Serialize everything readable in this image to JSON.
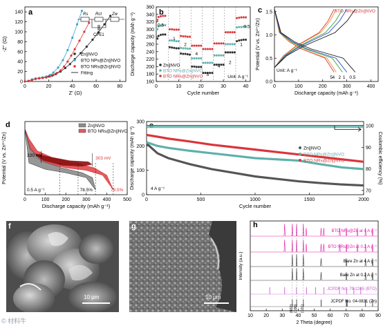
{
  "colors": {
    "black": "#2b2b2b",
    "blue": "#3aa6c7",
    "red": "#d9353a",
    "teal": "#5fb0aa",
    "gray": "#5a5a5a",
    "pink": "#e01aa6",
    "purple": "#c85cd0",
    "darkred": "#8b1010"
  },
  "panels": {
    "a": {
      "letter": "a",
      "xlabel": "Z' (Ω)",
      "ylabel": "-Z'' (Ω)",
      "xticks": [
        "0",
        "20",
        "40",
        "60",
        "80"
      ],
      "yticks": [
        "0",
        "20",
        "40",
        "60",
        "80",
        "100",
        "120",
        "140"
      ],
      "legend": [
        "Zn||NVO",
        "BTO NPs@Zn||NVO",
        "BTO NRs@Zn||NVO",
        "Fitting"
      ],
      "circuit": {
        "r1": "R",
        "r1sub": "s",
        "r2": "R",
        "r2sub": "ct",
        "cpe": "CPE",
        "cpesub": "1",
        "zw": "Z",
        "zwsub": "w"
      }
    },
    "b": {
      "letter": "b",
      "xlabel": "Cycle number",
      "ylabel": "Discharge capacity (mAh g⁻¹)",
      "xticks": [
        "0",
        "10",
        "20",
        "30",
        "40"
      ],
      "yticks": [
        "160",
        "180",
        "200",
        "220",
        "240",
        "260",
        "280",
        "300",
        "320",
        "340",
        "360"
      ],
      "rates": [
        "0.5",
        "1",
        "2",
        "4",
        "5",
        "4",
        "2",
        "1",
        "0.5"
      ],
      "unit": "Unit: A g⁻¹",
      "legend": [
        "Zn||NVO",
        "BTO NPs@Zn||NVO",
        "BTO NRs@Zn||NVO"
      ]
    },
    "c": {
      "letter": "c",
      "title": "BTO NRs@Zn||NVO",
      "xlabel": "Discharge capacity (mAh g⁻¹)",
      "ylabel": "Potential (V vs. Zn²⁺/Zn)",
      "xticks": [
        "0",
        "100",
        "200",
        "300",
        "400"
      ],
      "yticks": [
        "0.0",
        "0.5",
        "1.0",
        "1.5"
      ],
      "unit": "Unit: A g⁻¹",
      "rate_labels": [
        "5",
        "4",
        "2",
        "1",
        "0.5"
      ]
    },
    "d": {
      "letter": "d",
      "xlabel": "Discharge capacity (mAh g⁻¹)",
      "ylabel": "Potential (V vs. Zn²⁺/Zn)",
      "xticks": [
        "0",
        "100",
        "200",
        "300",
        "400",
        "500"
      ],
      "legend": [
        "Zn||NVO",
        "BTO NRs@Zn||NVO"
      ],
      "ann_left": "320 mV",
      "ann_right": "303 mV",
      "rate": "0.5 A g⁻¹",
      "ret_black": "78.5%",
      "ret_red": "79.5%"
    },
    "e": {
      "letter": "e",
      "xlabel": "Cycle number",
      "ylabel": "Discharge capacity (mAh g⁻¹)",
      "y2label": "Coulombic efficiency (%)",
      "xticks": [
        "0",
        "500",
        "1000",
        "1500",
        "2000"
      ],
      "yticks": [
        "0",
        "100",
        "200",
        "300"
      ],
      "y2ticks": [
        "70",
        "80",
        "90",
        "100"
      ],
      "legend": [
        "Zn||NVO",
        "BTO NPs@Zn||NVO",
        "BTO NRs@Zn||NVO"
      ],
      "rate": "4 A g⁻¹"
    },
    "f": {
      "letter": "f",
      "scale": "10 μm"
    },
    "g": {
      "letter": "g",
      "scale": "10 μm"
    },
    "h": {
      "letter": "h",
      "xlabel": "2 Theta (degree)",
      "ylabel": "Intensity (a.u.)",
      "xticks": [
        "10",
        "20",
        "30",
        "40",
        "50",
        "60",
        "70",
        "80",
        "90"
      ],
      "traces": [
        "BTO NRs@Zn at 4 A g⁻¹",
        "BTO NRs@Zn at 0.2 A g⁻¹",
        "Bare Zn at 4 A g⁻¹",
        "Bare Zn at 0.2 A g⁻¹",
        "JCPDF No. 79-2265 (BTO)",
        "JCPDF No. 04-0831 (Zn)"
      ],
      "peaks": [
        "(002)",
        "(100)",
        "(101)"
      ]
    }
  },
  "watermark": "© 材料牛",
  "chart_data": [
    {
      "type": "line",
      "panel": "a",
      "xlim": [
        0,
        85
      ],
      "ylim": [
        0,
        150
      ],
      "series": [
        {
          "name": "Zn||NVO",
          "x": [
            0,
            3,
            6,
            9,
            12,
            15,
            18,
            20,
            23,
            26,
            30,
            34,
            38,
            42,
            47,
            52,
            57,
            62,
            67,
            72
          ],
          "y": [
            0,
            1,
            4,
            6,
            7,
            8,
            9,
            10,
            12,
            15,
            20,
            27,
            35,
            45,
            57,
            70,
            84,
            99,
            115,
            132
          ]
        },
        {
          "name": "BTO NPs@Zn||NVO",
          "x": [
            0,
            3,
            6,
            9,
            12,
            15,
            18,
            21,
            24,
            28,
            32,
            36,
            40,
            44,
            48
          ],
          "y": [
            0,
            1,
            4,
            6,
            7,
            8,
            10,
            13,
            18,
            28,
            43,
            63,
            88,
            115,
            142
          ]
        },
        {
          "name": "BTO NRs@Zn||NVO",
          "x": [
            0,
            3,
            6,
            9,
            12,
            15,
            18,
            21,
            24,
            27,
            30,
            33,
            36,
            39,
            42,
            46,
            50,
            54
          ],
          "y": [
            0,
            1,
            3,
            5,
            6,
            7,
            8,
            10,
            13,
            17,
            22,
            30,
            40,
            52,
            65,
            82,
            100,
            118
          ]
        }
      ]
    },
    {
      "type": "scatter",
      "panel": "b",
      "xlim": [
        0,
        42
      ],
      "ylim": [
        160,
        360
      ],
      "series": [
        {
          "name": "Zn||NVO",
          "values": [
            [
              0.5,
              275
            ],
            [
              1,
              282
            ],
            [
              2,
              285
            ],
            [
              3,
              286
            ],
            [
              4,
              286
            ],
            [
              6,
              252
            ],
            [
              7,
              251
            ],
            [
              8,
              250
            ],
            [
              9,
              249
            ],
            [
              10,
              249
            ],
            [
              11,
              235
            ],
            [
              12,
              234
            ],
            [
              13,
              234
            ],
            [
              14,
              233
            ],
            [
              15,
              232
            ],
            [
              16,
              200
            ],
            [
              17,
              200
            ],
            [
              18,
              199
            ],
            [
              19,
              199
            ],
            [
              20,
              199
            ],
            [
              21,
              183
            ],
            [
              22,
              183
            ],
            [
              23,
              183
            ],
            [
              24,
              183
            ],
            [
              25,
              183
            ],
            [
              26,
              205
            ],
            [
              27,
              205
            ],
            [
              28,
              205
            ],
            [
              29,
              205
            ],
            [
              30,
              205
            ],
            [
              31,
              238
            ],
            [
              32,
              238
            ],
            [
              33,
              238
            ],
            [
              34,
              238
            ],
            [
              35,
              238
            ],
            [
              36,
              268
            ],
            [
              37,
              270
            ],
            [
              38,
              271
            ],
            [
              39,
              272
            ],
            [
              40,
              272
            ]
          ]
        },
        {
          "name": "BTO NPs@Zn||NVO",
          "values": [
            [
              0.5,
              300
            ],
            [
              1,
              308
            ],
            [
              2,
              310
            ],
            [
              3,
              311
            ],
            [
              4,
              311
            ],
            [
              6,
              270
            ],
            [
              7,
              270
            ],
            [
              8,
              269
            ],
            [
              9,
              268
            ],
            [
              10,
              268
            ],
            [
              11,
              250
            ],
            [
              12,
              249
            ],
            [
              13,
              249
            ],
            [
              14,
              248
            ],
            [
              15,
              248
            ],
            [
              16,
              222
            ],
            [
              17,
              222
            ],
            [
              18,
              222
            ],
            [
              19,
              222
            ],
            [
              20,
              222
            ],
            [
              21,
              210
            ],
            [
              22,
              210
            ],
            [
              23,
              210
            ],
            [
              24,
              210
            ],
            [
              25,
              210
            ],
            [
              26,
              230
            ],
            [
              27,
              230
            ],
            [
              28,
              230
            ],
            [
              29,
              230
            ],
            [
              30,
              230
            ],
            [
              31,
              260
            ],
            [
              32,
              260
            ],
            [
              33,
              260
            ],
            [
              34,
              260
            ],
            [
              35,
              260
            ],
            [
              36,
              305
            ],
            [
              37,
              306
            ],
            [
              38,
              306
            ],
            [
              39,
              307
            ],
            [
              40,
              307
            ]
          ]
        },
        {
          "name": "BTO NRs@Zn||NVO",
          "values": [
            [
              0.5,
              325
            ],
            [
              1,
              333
            ],
            [
              2,
              335
            ],
            [
              3,
              336
            ],
            [
              4,
              336
            ],
            [
              6,
              300
            ],
            [
              7,
              300
            ],
            [
              8,
              299
            ],
            [
              9,
              299
            ],
            [
              10,
              299
            ],
            [
              11,
              282
            ],
            [
              12,
              281
            ],
            [
              13,
              281
            ],
            [
              14,
              280
            ],
            [
              15,
              280
            ],
            [
              16,
              256
            ],
            [
              17,
              256
            ],
            [
              18,
              256
            ],
            [
              19,
              256
            ],
            [
              20,
              256
            ],
            [
              21,
              247
            ],
            [
              22,
              247
            ],
            [
              23,
              247
            ],
            [
              24,
              247
            ],
            [
              25,
              247
            ],
            [
              26,
              262
            ],
            [
              27,
              262
            ],
            [
              28,
              262
            ],
            [
              29,
              262
            ],
            [
              30,
              262
            ],
            [
              31,
              292
            ],
            [
              32,
              292
            ],
            [
              33,
              292
            ],
            [
              34,
              292
            ],
            [
              35,
              292
            ],
            [
              36,
              330
            ],
            [
              37,
              331
            ],
            [
              38,
              332
            ],
            [
              39,
              332
            ],
            [
              40,
              332
            ]
          ]
        }
      ]
    },
    {
      "type": "line",
      "panel": "c",
      "xlim": [
        0,
        430
      ],
      "ylim": [
        0,
        1.6
      ],
      "series": [
        {
          "name": "5",
          "capacity": 247
        },
        {
          "name": "4",
          "capacity": 256
        },
        {
          "name": "2",
          "capacity": 282
        },
        {
          "name": "1",
          "capacity": 300
        },
        {
          "name": "0.5",
          "capacity": 335
        }
      ]
    },
    {
      "type": "area",
      "panel": "d",
      "xlim": [
        0,
        500
      ],
      "ylim": [
        0.2,
        1.7
      ],
      "series": [
        {
          "name": "Zn||NVO",
          "capacity": 345
        },
        {
          "name": "BTO NRs@Zn||NVO",
          "capacity": 432
        }
      ]
    },
    {
      "type": "line",
      "panel": "e",
      "xlim": [
        0,
        2000
      ],
      "ylim": [
        0,
        300
      ],
      "y2lim": [
        70,
        102
      ],
      "series": [
        {
          "name": "Zn||NVO",
          "x": [
            0,
            100,
            200,
            400,
            600,
            800,
            1000,
            1200,
            1400,
            1600,
            1800,
            2000
          ],
          "y": [
            210,
            170,
            150,
            125,
            105,
            90,
            75,
            65,
            55,
            48,
            42,
            38
          ]
        },
        {
          "name": "BTO NPs@Zn||NVO",
          "x": [
            0,
            100,
            200,
            400,
            600,
            800,
            1000,
            1200,
            1400,
            1600,
            1800,
            2000
          ],
          "y": [
            215,
            200,
            192,
            180,
            170,
            160,
            150,
            145,
            140,
            125,
            112,
            105
          ]
        },
        {
          "name": "BTO NRs@Zn||NVO",
          "x": [
            0,
            100,
            200,
            400,
            600,
            800,
            1000,
            1200,
            1400,
            1600,
            1800,
            2000
          ],
          "y": [
            245,
            238,
            230,
            218,
            205,
            195,
            185,
            175,
            165,
            155,
            145,
            135
          ]
        },
        {
          "name": "Coulombic efficiency",
          "x": [
            0,
            2000
          ],
          "y": [
            99.8,
            99.9
          ]
        }
      ]
    },
    {
      "type": "line",
      "panel": "h",
      "xlim": [
        10,
        90
      ],
      "series": [
        {
          "name": "BTO NRs@Zn at 4 A g⁻¹",
          "peaks": [
            31.5,
            36.3,
            39,
            43.2,
            45,
            54.3,
            56,
            66,
            70.1,
            77,
            82.1,
            86.5
          ]
        },
        {
          "name": "BTO NRs@Zn at 0.2 A g⁻¹",
          "peaks": [
            31.5,
            36.3,
            39,
            43.2,
            45,
            54.3,
            56,
            66,
            70.1,
            77,
            82.1,
            86.5
          ]
        },
        {
          "name": "Bare Zn at 4 A g⁻¹",
          "peaks": [
            36.3,
            39,
            43.2,
            54.3,
            70.1,
            82.1,
            86.5
          ]
        },
        {
          "name": "Bare Zn at 0.2 A g⁻¹",
          "peaks": [
            36.3,
            39,
            43.2,
            54.3,
            70.1,
            82.1,
            86.5
          ]
        },
        {
          "name": "JCPDF No. 79-2265 (BTO)",
          "peaks": [
            22.2,
            31.5,
            38.9,
            45.2,
            50.9,
            56.1,
            65.8,
            70.3,
            74.8,
            79.1
          ]
        },
        {
          "name": "JCPDF No. 04-0831 (Zn)",
          "peaks": [
            36.3,
            39,
            43.2,
            54.3,
            70.1,
            70.6,
            82.1,
            86.5
          ]
        }
      ]
    }
  ]
}
